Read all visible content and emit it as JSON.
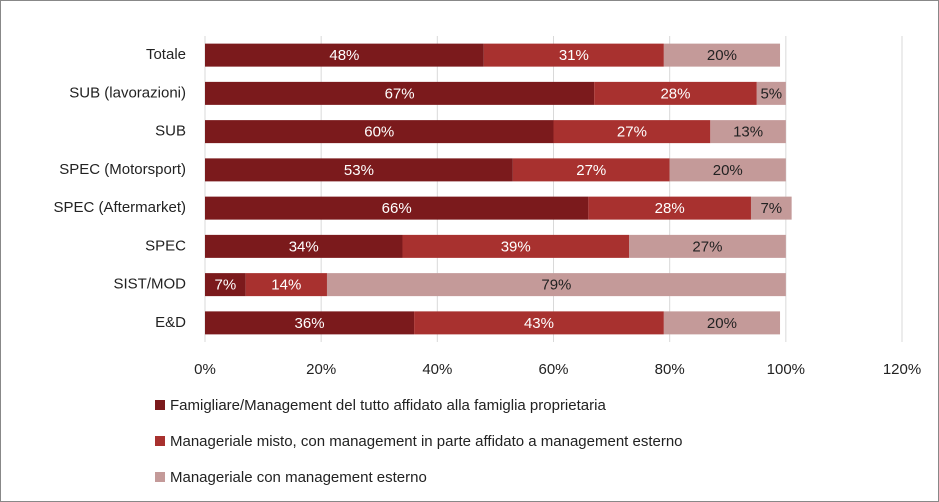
{
  "chart_data": {
    "type": "stacked_barh",
    "categories": [
      "Totale",
      "SUB (lavorazioni)",
      "SUB",
      "SPEC (Motorsport)",
      "SPEC (Aftermarket)",
      "SPEC",
      "SIST/MOD",
      "E&D"
    ],
    "series": [
      {
        "name": "Famigliare/Management del tutto affidato alla famiglia proprietaria",
        "color": "#7b1a1c",
        "values": [
          48,
          67,
          60,
          53,
          66,
          34,
          7,
          36
        ],
        "value_labels": [
          "48%",
          "67%",
          "60%",
          "53%",
          "66%",
          "34%",
          "7%",
          "36%"
        ]
      },
      {
        "name": "Manageriale misto, con management in parte affidato a management esterno",
        "color": "#a8312f",
        "values": [
          31,
          28,
          27,
          27,
          28,
          39,
          14,
          43
        ],
        "value_labels": [
          "31%",
          "28%",
          "27%",
          "27%",
          "28%",
          "39%",
          "14%",
          "43%"
        ]
      },
      {
        "name": "Manageriale con management esterno",
        "color": "#c49a99",
        "values": [
          20,
          5,
          13,
          20,
          7,
          27,
          79,
          20
        ],
        "value_labels": [
          "20%",
          "5%",
          "13%",
          "20%",
          "7%",
          "27%",
          "79%",
          "20%"
        ]
      }
    ],
    "xlim": [
      0,
      120
    ],
    "xticks": [
      {
        "value": 0,
        "label": "0%"
      },
      {
        "value": 20,
        "label": "20%"
      },
      {
        "value": 40,
        "label": "40%"
      },
      {
        "value": 60,
        "label": "60%"
      },
      {
        "value": 80,
        "label": "80%"
      },
      {
        "value": 100,
        "label": "100%"
      },
      {
        "value": 120,
        "label": "120%"
      }
    ],
    "grid": true,
    "legend": "bottom"
  }
}
